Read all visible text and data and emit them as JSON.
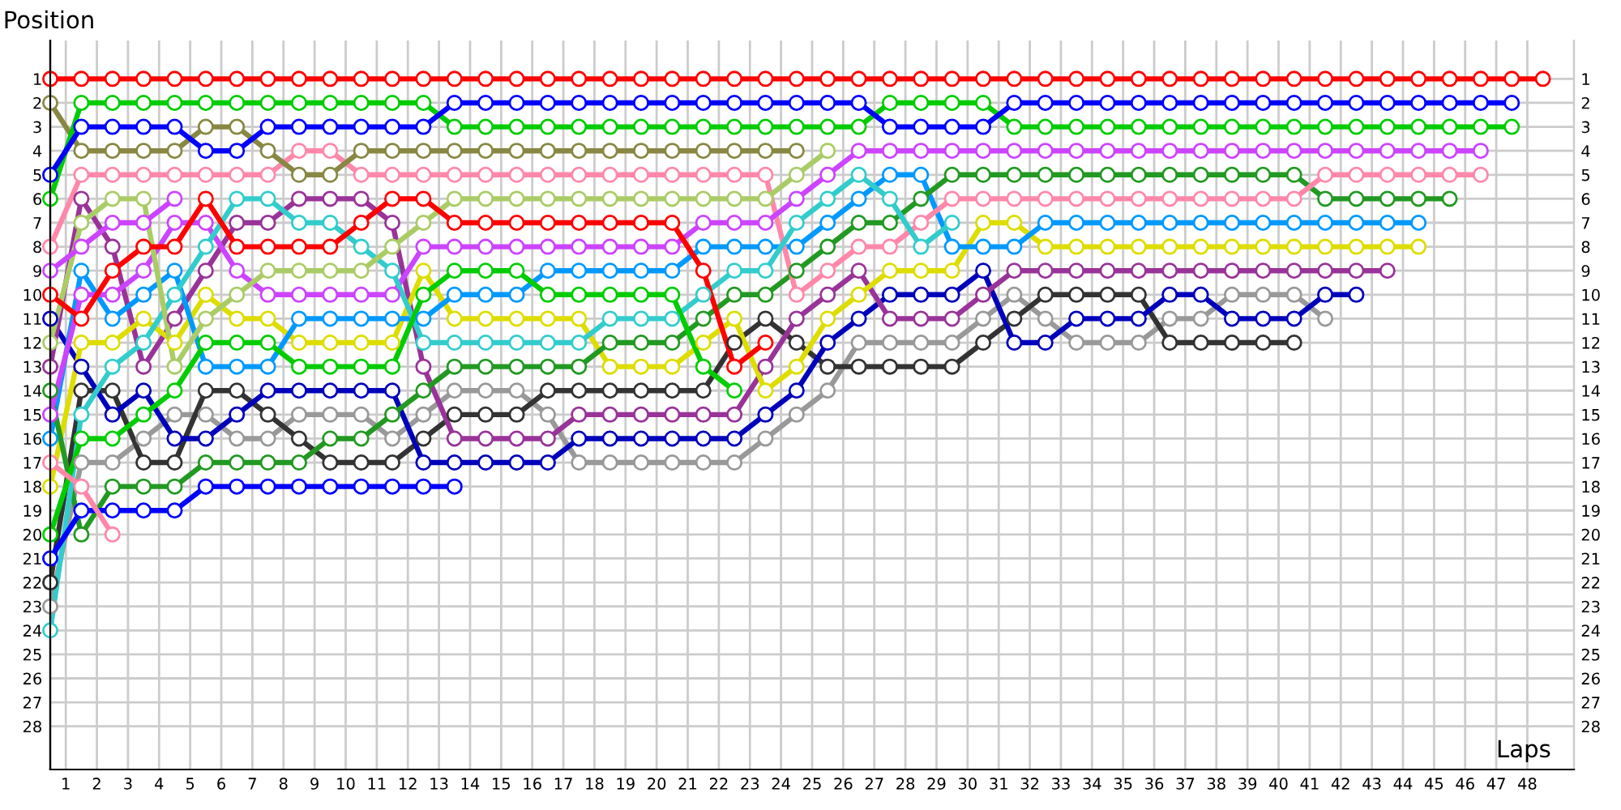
{
  "chart_data": {
    "type": "line",
    "xlabel": "Laps",
    "ylabel": "Position",
    "grid": true,
    "marker": "circle",
    "line_style": "solid",
    "x": [
      0,
      1,
      2,
      3,
      4,
      5,
      6,
      7,
      8,
      9,
      10,
      11,
      12,
      13,
      14,
      15,
      16,
      17,
      18,
      19,
      20,
      21,
      22,
      23,
      24,
      25,
      26,
      27,
      28,
      29,
      30,
      31,
      32,
      33,
      34,
      35,
      36,
      37,
      38,
      39,
      40,
      41,
      42,
      43,
      44,
      45,
      46,
      47,
      48
    ],
    "xlim": [
      0,
      49
    ],
    "xticks": [
      {
        "value": 0.5,
        "label": "1"
      },
      {
        "value": 1.5,
        "label": "2"
      },
      {
        "value": 2.5,
        "label": "3"
      },
      {
        "value": 3.5,
        "label": "4"
      },
      {
        "value": 4.5,
        "label": "5"
      },
      {
        "value": 5.5,
        "label": "6"
      },
      {
        "value": 6.5,
        "label": "7"
      },
      {
        "value": 7.5,
        "label": "8"
      },
      {
        "value": 8.5,
        "label": "9"
      },
      {
        "value": 9.5,
        "label": "10"
      },
      {
        "value": 10.5,
        "label": "11"
      },
      {
        "value": 11.5,
        "label": "12"
      },
      {
        "value": 12.5,
        "label": "13"
      },
      {
        "value": 13.5,
        "label": "14"
      },
      {
        "value": 14.5,
        "label": "15"
      },
      {
        "value": 15.5,
        "label": "16"
      },
      {
        "value": 16.5,
        "label": "17"
      },
      {
        "value": 17.5,
        "label": "18"
      },
      {
        "value": 18.5,
        "label": "19"
      },
      {
        "value": 19.5,
        "label": "20"
      },
      {
        "value": 20.5,
        "label": "21"
      },
      {
        "value": 21.5,
        "label": "22"
      },
      {
        "value": 22.5,
        "label": "23"
      },
      {
        "value": 23.5,
        "label": "24"
      },
      {
        "value": 24.5,
        "label": "25"
      },
      {
        "value": 25.5,
        "label": "26"
      },
      {
        "value": 26.5,
        "label": "27"
      },
      {
        "value": 27.5,
        "label": "28"
      },
      {
        "value": 28.5,
        "label": "29"
      },
      {
        "value": 29.5,
        "label": "30"
      },
      {
        "value": 30.5,
        "label": "31"
      },
      {
        "value": 31.5,
        "label": "32"
      },
      {
        "value": 32.5,
        "label": "33"
      },
      {
        "value": 33.5,
        "label": "34"
      },
      {
        "value": 34.5,
        "label": "35"
      },
      {
        "value": 35.5,
        "label": "36"
      },
      {
        "value": 36.5,
        "label": "37"
      },
      {
        "value": 37.5,
        "label": "38"
      },
      {
        "value": 38.5,
        "label": "39"
      },
      {
        "value": 39.5,
        "label": "40"
      },
      {
        "value": 40.5,
        "label": "41"
      },
      {
        "value": 41.5,
        "label": "42"
      },
      {
        "value": 42.5,
        "label": "43"
      },
      {
        "value": 43.5,
        "label": "44"
      },
      {
        "value": 44.5,
        "label": "45"
      },
      {
        "value": 45.5,
        "label": "46"
      },
      {
        "value": 46.5,
        "label": "47"
      },
      {
        "value": 47.5,
        "label": "48"
      }
    ],
    "ylim": [
      29.8,
      -0.6
    ],
    "yticks": [
      1,
      2,
      3,
      4,
      5,
      6,
      7,
      8,
      9,
      10,
      11,
      12,
      13,
      14,
      15,
      16,
      17,
      18,
      19,
      20,
      21,
      22,
      23,
      24,
      25,
      26,
      27,
      28
    ],
    "y2lim": [
      29.8,
      -0.6
    ],
    "y2ticks": [
      1,
      2,
      3,
      4,
      5,
      6,
      7,
      8,
      9,
      10,
      11,
      12,
      13,
      14,
      15,
      16,
      17,
      18,
      19,
      20,
      21,
      22,
      23,
      24,
      25,
      26,
      27,
      28
    ],
    "series": [
      {
        "color": "#999999",
        "values": [
          23,
          17,
          17,
          16,
          15,
          15,
          16,
          16,
          15,
          15,
          15,
          16,
          15,
          14,
          14,
          14,
          15,
          17,
          17,
          17,
          17,
          17,
          17,
          16,
          15,
          14,
          12,
          12,
          12,
          12,
          11,
          10,
          11,
          12,
          12,
          12,
          11,
          11,
          10,
          10,
          10,
          11,
          null,
          null,
          null,
          null,
          null,
          null,
          null
        ]
      },
      {
        "color": "#333333",
        "values": [
          22,
          14,
          14,
          17,
          17,
          14,
          14,
          15,
          16,
          17,
          17,
          17,
          16,
          15,
          15,
          15,
          14,
          14,
          14,
          14,
          14,
          14,
          12,
          11,
          12,
          13,
          13,
          13,
          13,
          13,
          12,
          11,
          10,
          10,
          10,
          10,
          12,
          12,
          12,
          12,
          12,
          null,
          null,
          null,
          null,
          null,
          null,
          null,
          null
        ]
      },
      {
        "color": "#0000bb",
        "values": [
          11,
          13,
          15,
          14,
          16,
          16,
          15,
          14,
          14,
          14,
          14,
          14,
          17,
          17,
          17,
          17,
          17,
          16,
          16,
          16,
          16,
          16,
          16,
          15,
          14,
          12,
          11,
          10,
          10,
          10,
          9,
          12,
          12,
          11,
          11,
          11,
          10,
          10,
          11,
          11,
          11,
          10,
          10,
          null,
          null,
          null,
          null,
          null,
          null
        ]
      },
      {
        "color": "#993399",
        "values": [
          13,
          6,
          8,
          13,
          11,
          9,
          7,
          7,
          6,
          6,
          6,
          7,
          13,
          16,
          16,
          16,
          16,
          15,
          15,
          15,
          15,
          15,
          15,
          13,
          11,
          10,
          9,
          11,
          11,
          11,
          10,
          9,
          9,
          9,
          9,
          9,
          9,
          9,
          9,
          9,
          9,
          9,
          9,
          9,
          null,
          null,
          null,
          null,
          null
        ]
      },
      {
        "color": "#dddd00",
        "values": [
          18,
          12,
          12,
          11,
          12,
          10,
          11,
          11,
          12,
          12,
          12,
          12,
          9,
          11,
          11,
          11,
          11,
          11,
          13,
          13,
          13,
          12,
          11,
          14,
          13,
          11,
          10,
          9,
          9,
          9,
          7,
          7,
          8,
          8,
          8,
          8,
          8,
          8,
          8,
          8,
          8,
          8,
          8,
          8,
          8,
          null,
          null,
          null,
          null
        ]
      },
      {
        "color": "#0099ff",
        "values": [
          16,
          9,
          11,
          10,
          9,
          13,
          13,
          13,
          11,
          11,
          11,
          11,
          11,
          10,
          10,
          10,
          9,
          9,
          9,
          9,
          9,
          8,
          8,
          8,
          8,
          7,
          6,
          5,
          5,
          8,
          8,
          8,
          7,
          7,
          7,
          7,
          7,
          7,
          7,
          7,
          7,
          7,
          7,
          7,
          7,
          null,
          null,
          null,
          null
        ]
      },
      {
        "color": "#229922",
        "values": [
          14,
          20,
          18,
          18,
          18,
          17,
          17,
          17,
          17,
          16,
          16,
          15,
          14,
          13,
          13,
          13,
          13,
          13,
          12,
          12,
          12,
          11,
          10,
          10,
          9,
          8,
          7,
          7,
          6,
          5,
          5,
          5,
          5,
          5,
          5,
          5,
          5,
          5,
          5,
          5,
          5,
          6,
          6,
          6,
          6,
          6,
          null,
          null,
          null
        ]
      },
      {
        "color": "#ff88aa",
        "values": [
          8,
          5,
          5,
          5,
          5,
          5,
          5,
          5,
          4,
          4,
          5,
          5,
          5,
          5,
          5,
          5,
          5,
          5,
          5,
          5,
          5,
          5,
          5,
          5,
          10,
          9,
          8,
          8,
          7,
          6,
          6,
          6,
          6,
          6,
          6,
          6,
          6,
          6,
          6,
          6,
          6,
          5,
          5,
          5,
          5,
          5,
          5,
          null,
          null
        ]
      },
      {
        "color": "#cc44ff",
        "values": [
          15,
          10,
          10,
          9,
          7,
          7,
          9,
          10,
          10,
          10,
          10,
          10,
          8,
          8,
          8,
          8,
          8,
          8,
          8,
          8,
          8,
          7,
          7,
          7,
          6,
          5,
          4,
          4,
          4,
          4,
          4,
          4,
          4,
          4,
          4,
          4,
          4,
          4,
          4,
          4,
          4,
          4,
          4,
          4,
          4,
          4,
          4,
          null,
          null
        ]
      },
      {
        "color": "#33cccc",
        "values": [
          24,
          15,
          13,
          12,
          10,
          8,
          6,
          6,
          7,
          7,
          8,
          9,
          12,
          12,
          12,
          12,
          12,
          12,
          11,
          11,
          11,
          10,
          9,
          9,
          7,
          6,
          5,
          6,
          8,
          7,
          null,
          null,
          null,
          null,
          null,
          null,
          null,
          null,
          null,
          null,
          null,
          null,
          null,
          null,
          null,
          null,
          null,
          null,
          null
        ]
      },
      {
        "color": "#aacc66",
        "values": [
          12,
          7,
          6,
          6,
          13,
          11,
          10,
          9,
          9,
          9,
          9,
          8,
          7,
          6,
          6,
          6,
          6,
          6,
          6,
          6,
          6,
          6,
          6,
          6,
          5,
          4,
          null,
          null,
          null,
          null,
          null,
          null,
          null,
          null,
          null,
          null,
          null,
          null,
          null,
          null,
          null,
          null,
          null,
          null,
          null,
          null,
          null,
          null,
          null
        ]
      },
      {
        "color": "#888844",
        "values": [
          2,
          4,
          4,
          4,
          4,
          3,
          3,
          4,
          5,
          5,
          4,
          4,
          4,
          4,
          4,
          4,
          4,
          4,
          4,
          4,
          4,
          4,
          4,
          4,
          4,
          null,
          null,
          null,
          null,
          null,
          null,
          null,
          null,
          null,
          null,
          null,
          null,
          null,
          null,
          null,
          null,
          null,
          null,
          null,
          null,
          null,
          null,
          null,
          null
        ]
      },
      {
        "color": "#ff0000",
        "values": [
          10,
          11,
          9,
          8,
          8,
          6,
          8,
          8,
          8,
          8,
          7,
          6,
          6,
          7,
          7,
          7,
          7,
          7,
          7,
          7,
          7,
          9,
          13,
          12,
          null,
          null,
          null,
          null,
          null,
          null,
          null,
          null,
          null,
          null,
          null,
          null,
          null,
          null,
          null,
          null,
          null,
          null,
          null,
          null,
          null,
          null,
          null,
          null,
          null
        ]
      },
      {
        "color": "#00cc00",
        "values": [
          20,
          16,
          16,
          15,
          14,
          12,
          12,
          12,
          13,
          13,
          13,
          13,
          10,
          9,
          9,
          9,
          10,
          10,
          10,
          10,
          10,
          13,
          14,
          null,
          null,
          null,
          null,
          null,
          null,
          null,
          null,
          null,
          null,
          null,
          null,
          null,
          null,
          null,
          null,
          null,
          null,
          null,
          null,
          null,
          null,
          null,
          null,
          null,
          null
        ]
      },
      {
        "color": "#0000ff",
        "values": [
          21,
          19,
          19,
          19,
          19,
          18,
          18,
          18,
          18,
          18,
          18,
          18,
          18,
          18,
          null,
          null,
          null,
          null,
          null,
          null,
          null,
          null,
          null,
          null,
          null,
          null,
          null,
          null,
          null,
          null,
          null,
          null,
          null,
          null,
          null,
          null,
          null,
          null,
          null,
          null,
          null,
          null,
          null,
          null,
          null,
          null,
          null,
          null,
          null
        ]
      },
      {
        "color": "#ff88aa",
        "values": [
          17,
          18,
          20,
          null,
          null,
          null,
          null,
          null,
          null,
          null,
          null,
          null,
          null,
          null,
          null,
          null,
          null,
          null,
          null,
          null,
          null,
          null,
          null,
          null,
          null,
          null,
          null,
          null,
          null,
          null,
          null,
          null,
          null,
          null,
          null,
          null,
          null,
          null,
          null,
          null,
          null,
          null,
          null,
          null,
          null,
          null,
          null,
          null,
          null
        ]
      },
      {
        "color": "#cc44ff",
        "values": [
          9,
          8,
          7,
          7,
          6,
          null,
          null,
          null,
          null,
          null,
          null,
          null,
          null,
          null,
          null,
          null,
          null,
          null,
          null,
          null,
          null,
          null,
          null,
          null,
          null,
          null,
          null,
          null,
          null,
          null,
          null,
          null,
          null,
          null,
          null,
          null,
          null,
          null,
          null,
          null,
          null,
          null,
          null,
          null,
          null,
          null,
          null,
          null,
          null
        ]
      },
      {
        "color": "#00cc00",
        "values": [
          6,
          2,
          2,
          2,
          2,
          2,
          2,
          2,
          2,
          2,
          2,
          2,
          2,
          3,
          3,
          3,
          3,
          3,
          3,
          3,
          3,
          3,
          3,
          3,
          3,
          3,
          3,
          2,
          2,
          2,
          2,
          3,
          3,
          3,
          3,
          3,
          3,
          3,
          3,
          3,
          3,
          3,
          3,
          3,
          3,
          3,
          3,
          3,
          null
        ]
      },
      {
        "color": "#0000ff",
        "values": [
          5,
          3,
          3,
          3,
          3,
          4,
          4,
          3,
          3,
          3,
          3,
          3,
          3,
          2,
          2,
          2,
          2,
          2,
          2,
          2,
          2,
          2,
          2,
          2,
          2,
          2,
          2,
          3,
          3,
          3,
          3,
          2,
          2,
          2,
          2,
          2,
          2,
          2,
          2,
          2,
          2,
          2,
          2,
          2,
          2,
          2,
          2,
          2,
          null
        ]
      },
      {
        "color": "#ff0000",
        "values": [
          1,
          1,
          1,
          1,
          1,
          1,
          1,
          1,
          1,
          1,
          1,
          1,
          1,
          1,
          1,
          1,
          1,
          1,
          1,
          1,
          1,
          1,
          1,
          1,
          1,
          1,
          1,
          1,
          1,
          1,
          1,
          1,
          1,
          1,
          1,
          1,
          1,
          1,
          1,
          1,
          1,
          1,
          1,
          1,
          1,
          1,
          1,
          1,
          1
        ]
      }
    ]
  }
}
